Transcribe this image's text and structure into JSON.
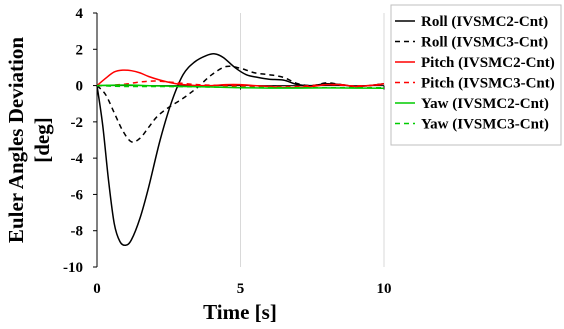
{
  "chart_data": {
    "type": "line",
    "xlabel": "Time [s]",
    "ylabel_lines": [
      "Euler Angles Deviation",
      "[deg]"
    ],
    "xlim": [
      0,
      10
    ],
    "ylim": [
      -10,
      4
    ],
    "xticks": [
      0,
      5,
      10
    ],
    "yticks": [
      4,
      2,
      0,
      -2,
      -4,
      -6,
      -8,
      -10
    ],
    "grid": "vertical",
    "legend_position": "right",
    "series": [
      {
        "name": "Roll (IVSMC2-Cnt)",
        "color": "#000000",
        "dash": "solid",
        "x": [
          0,
          0.2,
          0.4,
          0.6,
          0.8,
          1.0,
          1.2,
          1.5,
          1.8,
          2.2,
          2.6,
          3.0,
          3.4,
          3.8,
          4.1,
          4.4,
          4.8,
          5.2,
          5.6,
          6.0,
          6.5,
          7.0,
          7.5,
          8.0,
          8.5,
          9.0,
          9.5,
          10.0
        ],
        "y": [
          0,
          -2.2,
          -5.2,
          -7.6,
          -8.6,
          -8.8,
          -8.5,
          -7.3,
          -5.6,
          -3.0,
          -0.9,
          0.6,
          1.3,
          1.65,
          1.75,
          1.55,
          1.0,
          0.6,
          0.45,
          0.35,
          0.3,
          0.05,
          0.0,
          0.1,
          0.05,
          -0.05,
          0.0,
          0.1
        ]
      },
      {
        "name": "Roll (IVSMC3-Cnt)",
        "color": "#000000",
        "dash": "dashed",
        "x": [
          0,
          0.3,
          0.6,
          0.9,
          1.2,
          1.5,
          1.8,
          2.1,
          2.5,
          3.0,
          3.5,
          4.0,
          4.5,
          5.0,
          5.5,
          6.0,
          6.5,
          7.0,
          7.5,
          8.0,
          8.5,
          9.0,
          9.5,
          10.0
        ],
        "y": [
          0,
          -0.5,
          -1.5,
          -2.5,
          -3.1,
          -2.9,
          -2.3,
          -1.7,
          -1.2,
          -0.7,
          -0.1,
          0.6,
          1.05,
          0.95,
          0.7,
          0.6,
          0.45,
          0.1,
          0.0,
          0.15,
          0.05,
          -0.05,
          0.0,
          0.1
        ]
      },
      {
        "name": "Pitch (IVSMC2-Cnt)",
        "color": "#ff0000",
        "dash": "solid",
        "x": [
          0,
          0.3,
          0.6,
          0.9,
          1.2,
          1.5,
          1.8,
          2.2,
          2.6,
          3.0,
          3.5,
          4.0,
          4.5,
          5.0,
          5.5,
          6.0,
          6.5,
          7.0,
          7.5,
          8.0,
          8.5,
          9.0,
          9.5,
          10.0
        ],
        "y": [
          0,
          0.4,
          0.75,
          0.85,
          0.82,
          0.7,
          0.5,
          0.3,
          0.15,
          0.05,
          0.0,
          0.0,
          0.05,
          0.05,
          0.0,
          -0.05,
          -0.1,
          -0.1,
          -0.05,
          0.05,
          0.05,
          -0.05,
          0.0,
          0.1
        ]
      },
      {
        "name": "Pitch (IVSMC3-Cnt)",
        "color": "#ff0000",
        "dash": "dashed",
        "x": [
          0,
          0.5,
          1.0,
          1.5,
          2.0,
          2.5,
          3.0,
          3.5,
          4.0,
          4.5,
          5.0,
          6.0,
          7.0,
          8.0,
          9.0,
          10.0
        ],
        "y": [
          0,
          0.02,
          0.08,
          0.2,
          0.25,
          0.2,
          0.12,
          0.05,
          0.02,
          0.0,
          -0.02,
          -0.05,
          -0.05,
          0.05,
          -0.02,
          0.05
        ]
      },
      {
        "name": "Yaw (IVSMC2-Cnt)",
        "color": "#00cc00",
        "dash": "solid",
        "x": [
          0,
          1.0,
          2.0,
          3.0,
          4.0,
          5.0,
          6.0,
          7.0,
          8.0,
          9.0,
          10.0
        ],
        "y": [
          0,
          0.03,
          -0.02,
          -0.05,
          -0.08,
          -0.12,
          -0.14,
          -0.14,
          -0.13,
          -0.14,
          -0.15
        ]
      },
      {
        "name": "Yaw (IVSMC3-Cnt)",
        "color": "#00cc00",
        "dash": "dashed",
        "x": [
          0,
          1.0,
          2.0,
          3.0,
          4.0,
          5.0,
          6.0,
          7.0,
          8.0,
          9.0,
          10.0
        ],
        "y": [
          0,
          -0.05,
          -0.05,
          -0.06,
          -0.08,
          -0.1,
          -0.11,
          -0.12,
          -0.12,
          -0.12,
          -0.12
        ]
      }
    ]
  }
}
